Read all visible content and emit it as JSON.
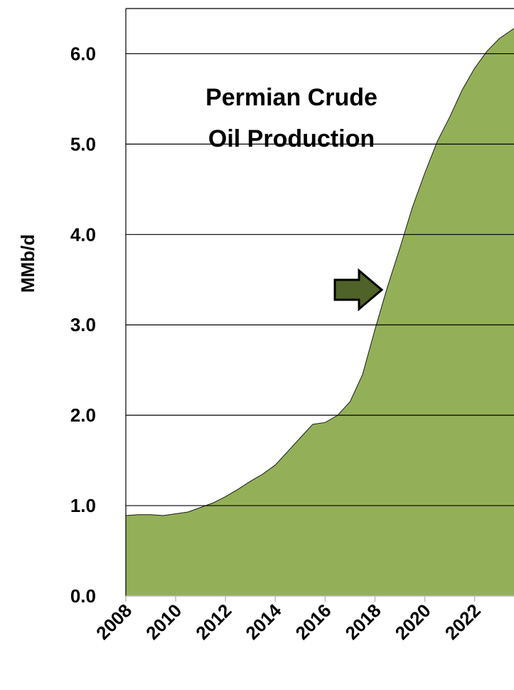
{
  "chart_data": {
    "type": "area",
    "title_lines": [
      "Permian Crude",
      "Oil Production"
    ],
    "y_label": "MMb/d",
    "color": "#93b058",
    "grid": true,
    "xlim": [
      2008,
      2023.58
    ],
    "ylim": [
      0,
      6.5
    ],
    "xticks": [
      2008,
      2010,
      2012,
      2014,
      2016,
      2018,
      2020,
      2022
    ],
    "yticks": [
      {
        "value": 0,
        "label": "0.0"
      },
      {
        "value": 1,
        "label": "1.0"
      },
      {
        "value": 2,
        "label": "2.0"
      },
      {
        "value": 3,
        "label": "3.0"
      },
      {
        "value": 4,
        "label": "4.0"
      },
      {
        "value": 5,
        "label": "5.0"
      },
      {
        "value": 6,
        "label": "6.0"
      }
    ],
    "x": [
      2008,
      2008.5,
      2009,
      2009.5,
      2010,
      2010.5,
      2011,
      2011.5,
      2012,
      2012.5,
      2013,
      2013.5,
      2014,
      2014.5,
      2015,
      2015.5,
      2016,
      2016.5,
      2017,
      2017.5,
      2018,
      2018.5,
      2019,
      2019.5,
      2020,
      2020.5,
      2021,
      2021.5,
      2022,
      2022.5,
      2023,
      2023.58
    ],
    "values": [
      0.89,
      0.9,
      0.9,
      0.89,
      0.91,
      0.93,
      0.98,
      1.03,
      1.1,
      1.18,
      1.27,
      1.35,
      1.45,
      1.6,
      1.75,
      1.9,
      1.92,
      2.0,
      2.15,
      2.45,
      2.95,
      3.42,
      3.85,
      4.3,
      4.68,
      5.03,
      5.3,
      5.6,
      5.84,
      6.03,
      6.17,
      6.28
    ]
  }
}
